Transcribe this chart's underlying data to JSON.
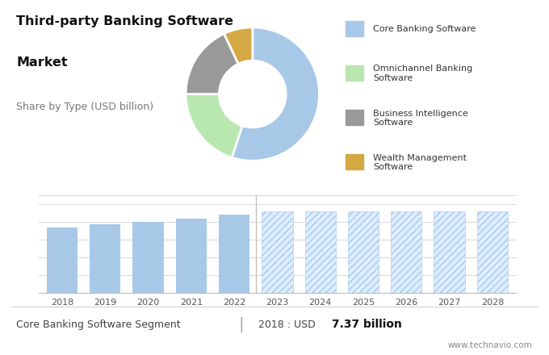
{
  "title_line1": "Third-party Banking Software",
  "title_line2": "Market",
  "subtitle": "Share by Type (USD billion)",
  "donut_labels": [
    "Core Banking Software",
    "Omnichannel Banking\nSoftware",
    "Business Intelligence\nSoftware",
    "Wealth Management\nSoftware"
  ],
  "donut_values": [
    55,
    20,
    18,
    7
  ],
  "donut_colors": [
    "#a8c8e8",
    "#b8e8b0",
    "#999999",
    "#d4a843"
  ],
  "donut_startangle": 90,
  "bar_years_solid": [
    2018,
    2019,
    2020,
    2021,
    2022
  ],
  "bar_values_solid": [
    7.37,
    7.7,
    8.0,
    8.4,
    8.8
  ],
  "bar_years_hatch": [
    2023,
    2024,
    2025,
    2026,
    2027,
    2028
  ],
  "bar_values_hatch": [
    9.2,
    9.2,
    9.2,
    9.2,
    9.2,
    9.2
  ],
  "bar_color_solid": "#a8c8e8",
  "bar_color_hatch_face": "#ddeeff",
  "bar_hatch": "////",
  "bar_hatch_color": "#a8c8e8",
  "bar_ylim": [
    0,
    11
  ],
  "top_bg_color": "#e0e0e0",
  "footer_left": "Core Banking Software Segment",
  "footer_right_prefix": "2018 : USD ",
  "footer_right_bold": "7.37 billion",
  "footer_url": "www.technavio.com",
  "grid_color": "#d0d0d0",
  "legend_square_colors": [
    "#a8c8e8",
    "#b8e8b0",
    "#999999",
    "#d4a843"
  ]
}
